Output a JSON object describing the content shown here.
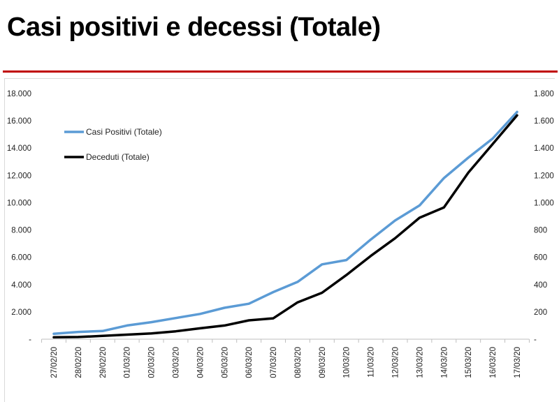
{
  "slide": {
    "title": "Casi positivi e decessi (Totale)"
  },
  "colors": {
    "accent_rule": "#c00000",
    "series_positivi": "#5b9bd5",
    "series_deceduti": "#000000"
  },
  "chart_data": {
    "type": "line",
    "title": "",
    "x": [
      "27/02/20",
      "28/02/20",
      "29/02/20",
      "01/03/20",
      "02/03/20",
      "03/03/20",
      "04/03/20",
      "05/03/20",
      "06/03/20",
      "07/03/20",
      "08/03/20",
      "09/03/20",
      "10/03/20",
      "11/03/20",
      "12/03/20",
      "13/03/20",
      "14/03/20",
      "15/03/20",
      "16/03/20",
      "17/03/20"
    ],
    "series": [
      {
        "name": "Casi Positivi (Totale)",
        "axis": "left",
        "color": "#5b9bd5",
        "values": [
          400,
          530,
          600,
          1000,
          1250,
          1550,
          1850,
          2300,
          2600,
          3450,
          4200,
          5480,
          5800,
          7300,
          8700,
          9800,
          11800,
          13300,
          14700,
          16650
        ]
      },
      {
        "name": "Deceduti (Totale)",
        "axis": "right",
        "color": "#000000",
        "values": [
          14,
          16,
          24,
          33,
          42,
          58,
          80,
          100,
          138,
          153,
          270,
          340,
          470,
          610,
          740,
          890,
          965,
          1220,
          1430,
          1640
        ]
      }
    ],
    "y_left": {
      "lim": [
        0,
        18000
      ],
      "ticks": [
        "-",
        "2.000",
        "4.000",
        "6.000",
        "8.000",
        "10.000",
        "12.000",
        "14.000",
        "16.000",
        "18.000"
      ]
    },
    "y_right": {
      "lim": [
        0,
        1800
      ],
      "ticks": [
        "-",
        "200",
        "400",
        "600",
        "800",
        "1.000",
        "1.200",
        "1.400",
        "1.600",
        "1.800"
      ]
    },
    "grid": false,
    "legend": "top-left"
  }
}
